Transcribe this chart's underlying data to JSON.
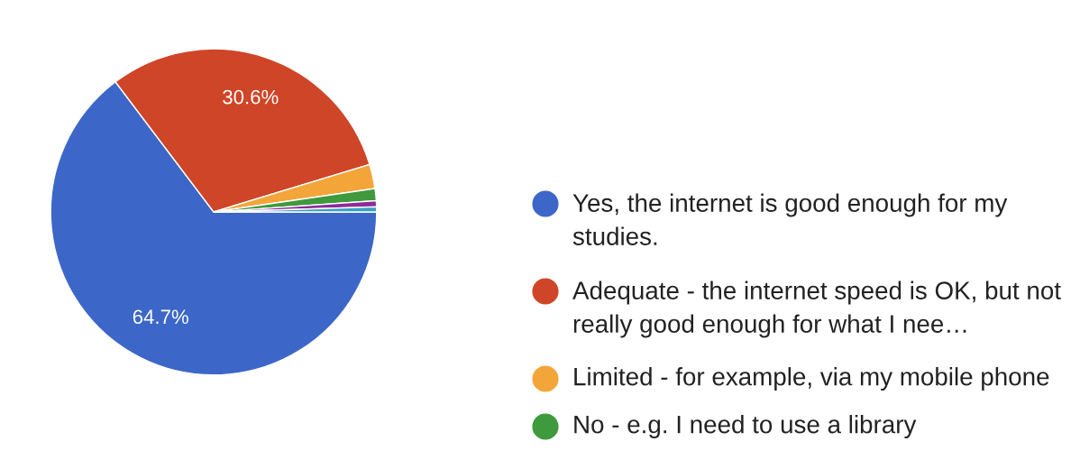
{
  "chart_data": {
    "type": "pie",
    "categories": [
      "Yes, the internet is good enough for my studies.",
      "Adequate - the internet speed is OK, but not really good enough for what I nee…",
      "Limited - for example, via my mobile phone",
      "No - e.g. I need to use a library",
      null,
      null
    ],
    "values": [
      64.7,
      30.6,
      2.4,
      1.2,
      0.6,
      0.5
    ],
    "colors": [
      "#3c67c8",
      "#cf4527",
      "#f4a53a",
      "#3e9a3c",
      "#8e2a9b",
      "#3a9fc4"
    ],
    "value_labels": [
      "64.7%",
      "30.6%",
      null,
      null,
      null,
      null
    ],
    "legend": "right"
  }
}
